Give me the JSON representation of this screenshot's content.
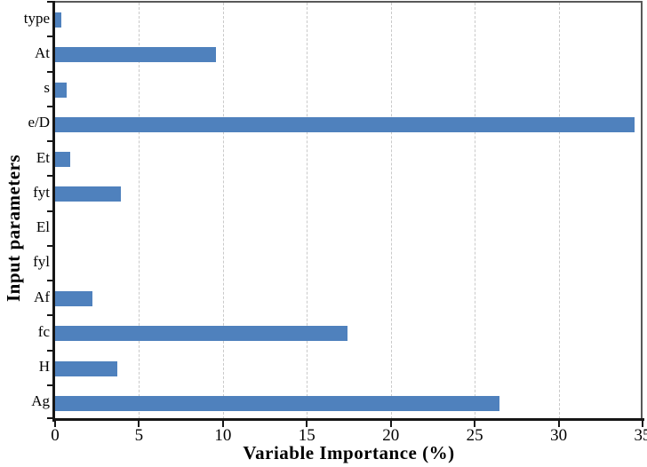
{
  "chart_data": {
    "type": "bar",
    "orientation": "horizontal",
    "title": "",
    "xlabel": "Variable Importance (%)",
    "ylabel": "Input parameters",
    "categories": [
      "type",
      "At",
      "s",
      "e/D",
      "Et",
      "fyt",
      "El",
      "fyl",
      "Af",
      "fc",
      "H",
      "Ag"
    ],
    "values": [
      0.35,
      9.6,
      0.7,
      34.5,
      0.9,
      3.9,
      0,
      0,
      2.2,
      17.4,
      3.7,
      26.5
    ],
    "xlim": [
      0,
      35
    ],
    "xticks": [
      0,
      5,
      10,
      15,
      20,
      25,
      30,
      35
    ],
    "grid": "vertical-dashed",
    "legend": "none",
    "bar_color": "#4f81bd",
    "axis_color": "#161616",
    "border_color": "#595959",
    "grid_color": "#c9c9c9"
  }
}
